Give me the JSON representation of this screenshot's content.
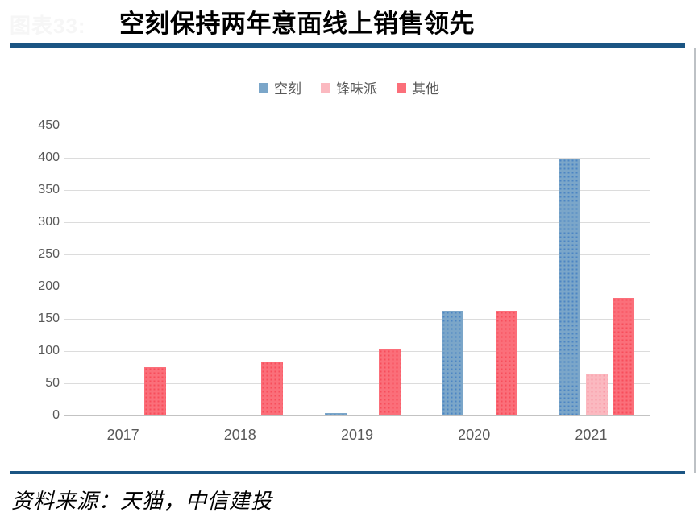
{
  "header": {
    "watermark": "图表33:",
    "title": "空刻保持两年意面线上销售领先"
  },
  "footer": {
    "source": "资料来源：天猫，中信建投"
  },
  "colors": {
    "accent_navy": "#1b5583",
    "grid": "#dcdcdc",
    "axis_text": "#595959",
    "kongke_blue": "#7ba6c9",
    "kongke_blue_dot": "#4c85c4",
    "fengweipai_pink": "#fbb9c0",
    "fengweipai_pink_dot": "#f99ca9",
    "qita_red": "#fb6f7a",
    "qita_red_dot": "#f74d5b"
  },
  "chart_data": {
    "type": "bar",
    "title": "空刻保持两年意面线上销售领先",
    "categories": [
      "2017",
      "2018",
      "2019",
      "2020",
      "2021"
    ],
    "series": [
      {
        "name": "空刻",
        "fill": "#7ba6c9",
        "dot": "#4c85c4",
        "values": [
          0,
          0,
          4,
          163,
          399
        ]
      },
      {
        "name": "锋味派",
        "fill": "#fbb9c0",
        "dot": "#f99ca9",
        "values": [
          0,
          0,
          0,
          0,
          65
        ]
      },
      {
        "name": "其他",
        "fill": "#fb6f7a",
        "dot": "#f74d5b",
        "values": [
          75,
          84,
          103,
          162,
          182
        ]
      }
    ],
    "xlabel": "",
    "ylabel": "",
    "ylim": [
      0,
      450
    ],
    "ytick_step": 50,
    "yticks": [
      0,
      50,
      100,
      150,
      200,
      250,
      300,
      350,
      400,
      450
    ],
    "grid": true,
    "legend_position": "top-center"
  }
}
